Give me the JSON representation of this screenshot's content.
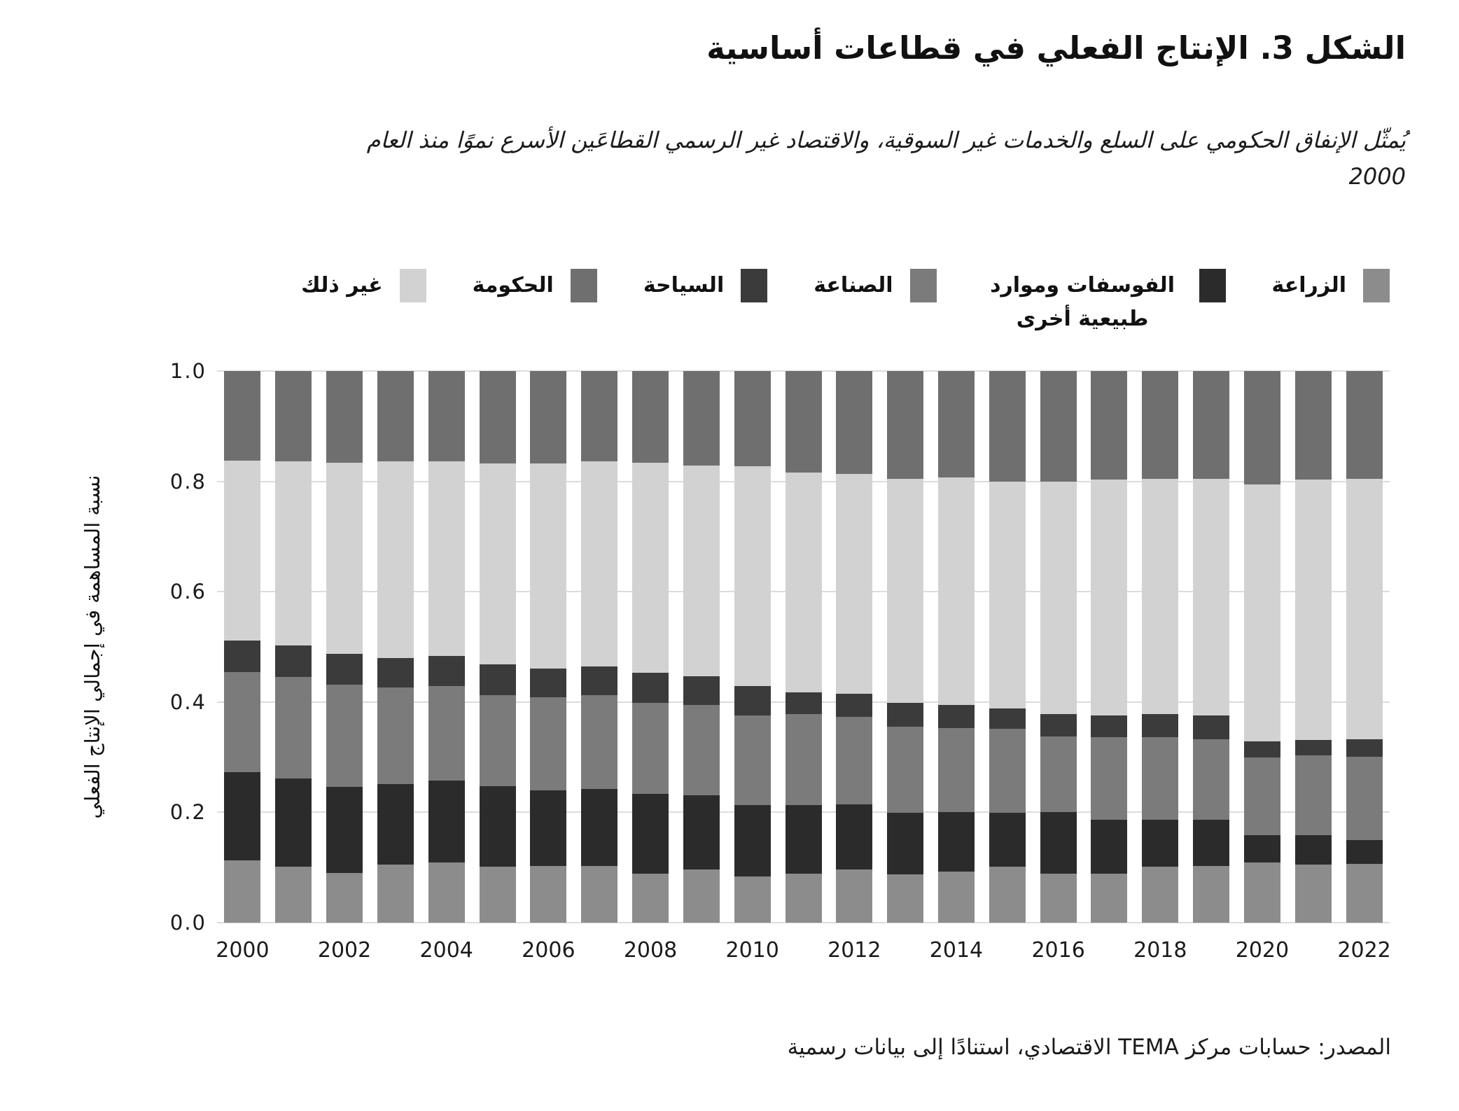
{
  "title": "الشكل 3. الإنتاج الفعلي في قطاعات أساسية",
  "subtitle": "يُمثّل الإنفاق الحكومي على السلع والخدمات غير السوقية، والاقتصاد غير الرسمي القطاعَين الأسرع نموًا منذ العام 2000",
  "source": "المصدر: حسابات مركز TEMA الاقتصادي، استنادًا إلى بيانات رسمية",
  "legend": {
    "items": [
      {
        "label": "الزراعة",
        "color": "#8c8c8c"
      },
      {
        "label": "الفوسفات وموارد طبيعية أخرى",
        "color": "#2b2b2b"
      },
      {
        "label": "الصناعة",
        "color": "#7b7b7b"
      },
      {
        "label": "السياحة",
        "color": "#3b3b3b"
      },
      {
        "label": "الحكومة",
        "color": "#6f6f6f"
      },
      {
        "label": "غير ذلك",
        "color": "#d2d2d2"
      }
    ]
  },
  "chart_data": {
    "type": "bar",
    "stacked": true,
    "title": "الشكل 3. الإنتاج الفعلي في قطاعات أساسية",
    "xlabel": "",
    "ylabel": "نسبة المساهمة في إجمالي الإنتاج الفعلي",
    "ylim": [
      0,
      1.0
    ],
    "grid": true,
    "grid_color": "#dcdcdc",
    "legend_position": "top",
    "y_ticks": [
      "0.0",
      "0.2",
      "0.4",
      "0.6",
      "0.8",
      "1.0"
    ],
    "x": [
      2000,
      2001,
      2002,
      2003,
      2004,
      2005,
      2006,
      2007,
      2008,
      2009,
      2010,
      2011,
      2012,
      2013,
      2014,
      2015,
      2016,
      2017,
      2018,
      2019,
      2020,
      2021,
      2022
    ],
    "x_tick_labels": [
      "2000",
      "2002",
      "2004",
      "2006",
      "2008",
      "2010",
      "2012",
      "2014",
      "2016",
      "2018",
      "2020",
      "2022"
    ],
    "stack_order_note": "series listed bottom-to-top",
    "series": [
      {
        "name": "الزراعة",
        "color": "#8c8c8c",
        "values": [
          0.113,
          0.102,
          0.09,
          0.105,
          0.109,
          0.101,
          0.103,
          0.103,
          0.089,
          0.096,
          0.084,
          0.089,
          0.096,
          0.088,
          0.093,
          0.101,
          0.089,
          0.089,
          0.101,
          0.103,
          0.109,
          0.105,
          0.107
        ]
      },
      {
        "name": "الفوسفات وموارد طبيعية أخرى",
        "color": "#2b2b2b",
        "values": [
          0.16,
          0.159,
          0.156,
          0.146,
          0.149,
          0.146,
          0.137,
          0.14,
          0.144,
          0.135,
          0.129,
          0.124,
          0.119,
          0.111,
          0.108,
          0.098,
          0.112,
          0.097,
          0.085,
          0.083,
          0.05,
          0.054,
          0.043
        ]
      },
      {
        "name": "الصناعة",
        "color": "#7b7b7b",
        "values": [
          0.181,
          0.184,
          0.185,
          0.176,
          0.171,
          0.165,
          0.169,
          0.169,
          0.166,
          0.164,
          0.163,
          0.165,
          0.158,
          0.156,
          0.152,
          0.152,
          0.137,
          0.15,
          0.15,
          0.146,
          0.14,
          0.144,
          0.151
        ]
      },
      {
        "name": "السياحة",
        "color": "#3b3b3b",
        "values": [
          0.058,
          0.057,
          0.056,
          0.053,
          0.054,
          0.056,
          0.052,
          0.053,
          0.054,
          0.052,
          0.053,
          0.039,
          0.042,
          0.044,
          0.042,
          0.038,
          0.04,
          0.04,
          0.042,
          0.044,
          0.03,
          0.028,
          0.031
        ]
      },
      {
        "name": "غير ذلك",
        "color": "#d2d2d2",
        "values": [
          0.326,
          0.334,
          0.347,
          0.356,
          0.353,
          0.364,
          0.371,
          0.371,
          0.381,
          0.382,
          0.399,
          0.399,
          0.399,
          0.406,
          0.412,
          0.411,
          0.422,
          0.428,
          0.426,
          0.429,
          0.466,
          0.472,
          0.473
        ]
      },
      {
        "name": "الحكومة",
        "color": "#6f6f6f",
        "values": [
          0.162,
          0.164,
          0.166,
          0.164,
          0.164,
          0.168,
          0.168,
          0.164,
          0.166,
          0.171,
          0.172,
          0.184,
          0.186,
          0.195,
          0.193,
          0.2,
          0.2,
          0.196,
          0.196,
          0.195,
          0.205,
          0.197,
          0.195
        ]
      }
    ]
  }
}
